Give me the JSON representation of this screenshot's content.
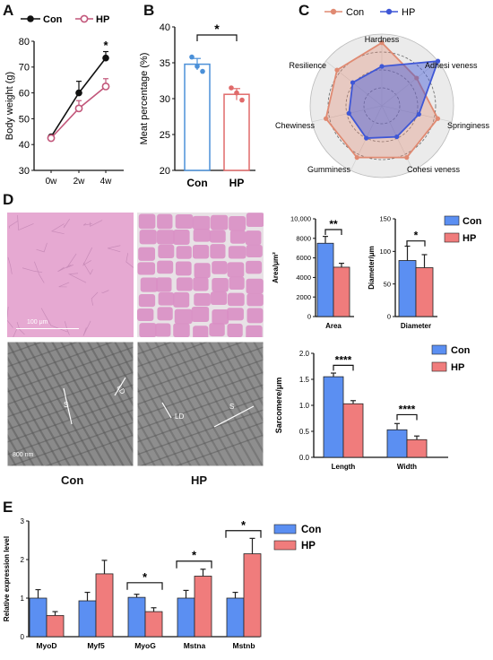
{
  "panels": {
    "a": "A",
    "b": "B",
    "c": "C",
    "d": "D",
    "e": "E"
  },
  "colors": {
    "con_dark": "#111111",
    "hp_pink": "#c2567a",
    "con_blue": "#5b8ff2",
    "hp_red": "#f07c7c",
    "radar_con": "#e08a72",
    "radar_hp": "#3f57d6",
    "b_con": "#4b90d8",
    "b_hp": "#e06a6a"
  },
  "chart_data": [
    {
      "id": "A",
      "type": "line",
      "ylabel": "Body weight (g)",
      "categories": [
        "0w",
        "2w",
        "4w"
      ],
      "ylim": [
        30,
        80
      ],
      "yticks": [
        "30",
        "40",
        "50",
        "60",
        "70",
        "80"
      ],
      "series": [
        {
          "name": "Con",
          "values": [
            43,
            60,
            73.5
          ],
          "err": [
            1.5,
            4.5,
            2.5
          ]
        },
        {
          "name": "HP",
          "values": [
            42.5,
            54,
            62.5
          ],
          "err": [
            1,
            3,
            3
          ]
        }
      ],
      "annotations": [
        "*"
      ]
    },
    {
      "id": "B",
      "type": "bar",
      "ylabel": "Meat percentage  (%)",
      "categories": [
        "Con",
        "HP"
      ],
      "values": [
        34.8,
        30.6
      ],
      "err": [
        0.8,
        0.8
      ],
      "points": [
        [
          35.8,
          34.5,
          33.8
        ],
        [
          31.5,
          30.8,
          29.8
        ]
      ],
      "ylim": [
        20,
        40
      ],
      "yticks": [
        "20",
        "25",
        "30",
        "35",
        "40"
      ],
      "annotations": [
        "*"
      ]
    },
    {
      "id": "C",
      "type": "radar",
      "axes": [
        "Hardness",
        "Adhesi veness",
        "Springiness",
        "Cohesi veness",
        "Gumminess",
        "Chewiness",
        "Resilience"
      ],
      "series": [
        {
          "name": "Con",
          "values": [
            0.88,
            0.62,
            0.8,
            0.8,
            0.8,
            0.8,
            0.8
          ]
        },
        {
          "name": "HP",
          "values": [
            0.55,
            1.0,
            0.53,
            0.48,
            0.5,
            0.47,
            0.52
          ]
        }
      ]
    },
    {
      "id": "D-area",
      "type": "bar",
      "ylabel": "Area/μm²",
      "xlabel": "Area",
      "series": [
        {
          "name": "Con",
          "values": [
            7500
          ],
          "err": [
            700
          ]
        },
        {
          "name": "HP",
          "values": [
            5050
          ],
          "err": [
            400
          ]
        }
      ],
      "ylim": [
        0,
        10000
      ],
      "yticks": [
        "0",
        "2000",
        "4000",
        "6000",
        "8000",
        "10,000"
      ],
      "annotations": [
        "**"
      ]
    },
    {
      "id": "D-diameter",
      "type": "bar",
      "ylabel": "Diameter/μm",
      "xlabel": "Diameter",
      "series": [
        {
          "name": "Con",
          "values": [
            86
          ],
          "err": [
            22
          ]
        },
        {
          "name": "HP",
          "values": [
            75
          ],
          "err": [
            20
          ]
        }
      ],
      "ylim": [
        0,
        150
      ],
      "yticks": [
        "0",
        "50",
        "100",
        "150"
      ],
      "annotations": [
        "*"
      ]
    },
    {
      "id": "D-sarcomere",
      "type": "bar",
      "ylabel": "Sarcomere/μm",
      "categories": [
        "Length",
        "Width"
      ],
      "series": [
        {
          "name": "Con",
          "values": [
            1.55,
            0.53
          ],
          "err": [
            0.07,
            0.12
          ]
        },
        {
          "name": "HP",
          "values": [
            1.03,
            0.34
          ],
          "err": [
            0.06,
            0.07
          ]
        }
      ],
      "ylim": [
        0,
        2.0
      ],
      "yticks": [
        "0.0",
        "0.5",
        "1.0",
        "1.5",
        "2.0"
      ],
      "annotations": [
        "****",
        "****"
      ]
    },
    {
      "id": "E",
      "type": "bar",
      "ylabel": "Relative expression level",
      "categories": [
        "MyoD",
        "Myf5",
        "MyoG",
        "Mstna",
        "Mstnb"
      ],
      "series": [
        {
          "name": "Con",
          "values": [
            1.0,
            0.93,
            1.02,
            1.0,
            1.0
          ],
          "err": [
            0.22,
            0.22,
            0.08,
            0.2,
            0.15
          ]
        },
        {
          "name": "HP",
          "values": [
            0.55,
            1.63,
            0.65,
            1.57,
            2.15
          ],
          "err": [
            0.1,
            0.35,
            0.1,
            0.18,
            0.4
          ]
        }
      ],
      "ylim": [
        0,
        3
      ],
      "yticks": [
        "0",
        "1",
        "2",
        "3"
      ],
      "annotations": [
        "*",
        "*",
        "*"
      ]
    }
  ],
  "micro": {
    "scale_top": "100 μm",
    "scale_bottom": "800 nm",
    "label_s": "S",
    "label_ld": "LD",
    "col_con": "Con",
    "col_hp": "HP"
  }
}
